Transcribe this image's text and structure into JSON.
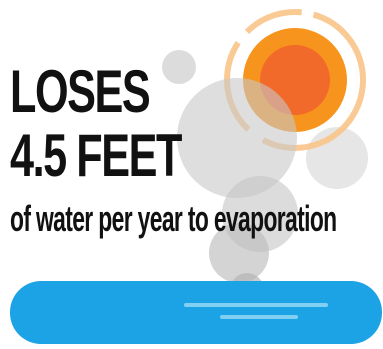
{
  "headline": {
    "line1": "LOSES",
    "line2": "4.5 FEET"
  },
  "subline": "of water per year to evaporation",
  "colors": {
    "text": "#111111",
    "sun_core": "#f26a2a",
    "sun_ring": "#f7941d",
    "sun_ring_outer": "#f9c48a",
    "bubbles": "#d9d9d9",
    "water": "#1ba3e6",
    "water_lines": "#7fd0f2"
  },
  "icons": [
    "sun-icon",
    "vapor-bubbles",
    "water-pool"
  ]
}
